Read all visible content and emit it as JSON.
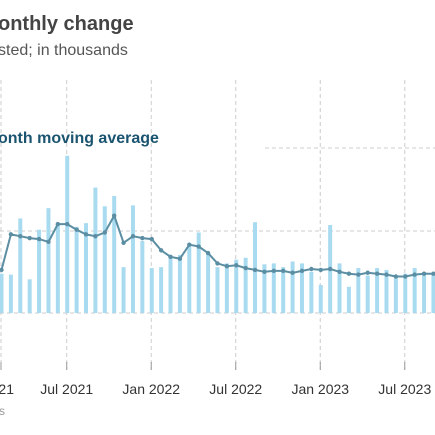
{
  "title": "onthly change",
  "subtitle": "sted; in thousands",
  "source_fragment": "s",
  "colors": {
    "bar": "#a8dbf0",
    "line": "#5b8ea3",
    "grid": "#cccccc",
    "label": "#1a5470"
  },
  "chart_data": {
    "type": "bar",
    "bars": {
      "values": [
        210,
        205,
        505,
        180,
        445,
        560,
        470,
        840,
        460,
        480,
        670,
        570,
        625,
        245,
        575,
        385,
        240,
        245,
        305,
        310,
        355,
        430,
        325,
        245,
        265,
        285,
        295,
        485,
        260,
        265,
        245,
        275,
        265,
        220,
        150,
        470,
        265,
        140,
        240,
        200,
        240,
        230,
        190,
        210,
        240,
        215,
        215
      ]
    },
    "line": {
      "name": "onth moving average",
      "values": [
        230,
        420,
        410,
        400,
        395,
        380,
        475,
        475,
        445,
        420,
        410,
        430,
        520,
        375,
        410,
        400,
        395,
        335,
        300,
        290,
        365,
        355,
        320,
        265,
        250,
        255,
        240,
        230,
        220,
        225,
        225,
        215,
        225,
        235,
        230,
        235,
        220,
        210,
        205,
        215,
        210,
        205,
        195,
        195,
        205,
        210,
        210
      ]
    },
    "x_tick_labels": [
      "21",
      "Jul 2021",
      "Jan 2022",
      "Jul 2022",
      "Jan 2023",
      "Jul 2023"
    ],
    "ylim": [
      0,
      860
    ],
    "grid": "vertical dashed at ticks, horizontal dashed reference lines"
  }
}
